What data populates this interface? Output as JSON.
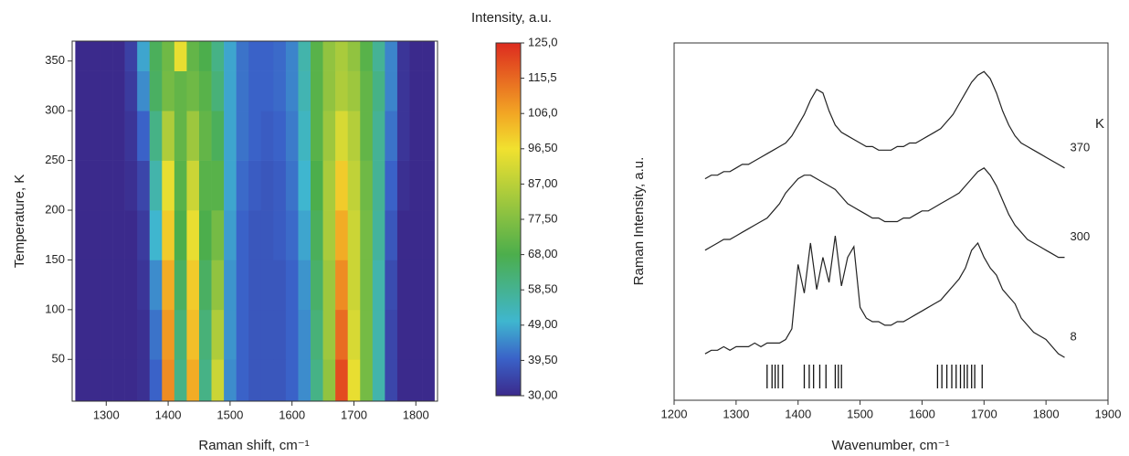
{
  "chart_data": [
    {
      "type": "heatmap",
      "xlabel": "Raman shift, cm⁻¹",
      "ylabel": "Temperature, K",
      "colorbar_label": "Intensity, a.u.",
      "xlim": [
        1245,
        1835
      ],
      "xticks": [
        1300,
        1400,
        1500,
        1600,
        1700,
        1800
      ],
      "ylim": [
        8,
        370
      ],
      "yticks": [
        50,
        100,
        150,
        200,
        250,
        300,
        350
      ],
      "zlim": [
        30,
        125
      ],
      "zticks": [
        {
          "value": 125,
          "label": "125,0"
        },
        {
          "value": 115.5,
          "label": "115,5"
        },
        {
          "value": 106,
          "label": "106,0"
        },
        {
          "value": 96.5,
          "label": "96,50"
        },
        {
          "value": 87,
          "label": "87,00"
        },
        {
          "value": 77.5,
          "label": "77,50"
        },
        {
          "value": 68,
          "label": "68,00"
        },
        {
          "value": 58.5,
          "label": "58,50"
        },
        {
          "value": 49,
          "label": "49,00"
        },
        {
          "value": 39.5,
          "label": "39,50"
        },
        {
          "value": 30,
          "label": "30,00"
        }
      ],
      "colorscale": [
        [
          30,
          "#3b2a8c"
        ],
        [
          40,
          "#3a62c8"
        ],
        [
          50,
          "#3fb6cf"
        ],
        [
          68,
          "#4cae4c"
        ],
        [
          96.5,
          "#f1e12f"
        ],
        [
          106,
          "#f2a624"
        ],
        [
          125,
          "#dd2b1f"
        ]
      ],
      "xbins": [
        1250,
        1270,
        1290,
        1310,
        1330,
        1350,
        1370,
        1390,
        1410,
        1430,
        1450,
        1470,
        1490,
        1510,
        1530,
        1550,
        1570,
        1590,
        1610,
        1630,
        1650,
        1670,
        1690,
        1710,
        1730,
        1750,
        1770,
        1790,
        1810,
        1830
      ],
      "ybins": [
        8,
        50,
        100,
        150,
        200,
        250,
        300,
        340,
        370
      ],
      "z": [
        [
          30,
          30,
          30,
          30,
          30,
          31,
          40,
          110,
          60,
          105,
          60,
          90,
          45,
          40,
          38,
          38,
          38,
          40,
          45,
          60,
          80,
          120,
          95,
          75,
          55,
          35,
          30,
          30,
          30
        ],
        [
          30,
          30,
          30,
          30,
          30,
          31,
          42,
          108,
          62,
          102,
          62,
          85,
          46,
          40,
          38,
          38,
          38,
          40,
          45,
          62,
          82,
          115,
          92,
          75,
          55,
          35,
          30,
          30,
          30
        ],
        [
          30,
          30,
          30,
          30,
          30,
          32,
          45,
          105,
          65,
          100,
          65,
          80,
          46,
          40,
          38,
          38,
          38,
          40,
          46,
          64,
          82,
          110,
          90,
          75,
          55,
          36,
          30,
          30,
          30
        ],
        [
          30,
          30,
          30,
          30,
          30,
          33,
          50,
          100,
          68,
          95,
          68,
          75,
          47,
          40,
          38,
          38,
          39,
          41,
          48,
          66,
          84,
          105,
          90,
          75,
          57,
          38,
          30,
          30,
          30
        ],
        [
          30,
          30,
          30,
          30,
          31,
          35,
          55,
          95,
          70,
          90,
          70,
          70,
          48,
          41,
          39,
          38,
          39,
          42,
          50,
          68,
          84,
          100,
          88,
          74,
          58,
          40,
          31,
          30,
          30
        ],
        [
          30,
          30,
          30,
          30,
          32,
          40,
          60,
          85,
          72,
          82,
          72,
          66,
          48,
          42,
          40,
          39,
          40,
          43,
          52,
          70,
          82,
          92,
          86,
          72,
          58,
          42,
          32,
          30,
          30
        ],
        [
          30,
          30,
          30,
          30,
          33,
          45,
          65,
          75,
          72,
          74,
          70,
          62,
          48,
          42,
          40,
          40,
          41,
          44,
          54,
          70,
          80,
          85,
          82,
          72,
          60,
          44,
          32,
          30,
          30
        ],
        [
          30,
          30,
          30,
          30,
          34,
          48,
          66,
          74,
          95,
          72,
          68,
          60,
          48,
          42,
          40,
          40,
          41,
          44,
          55,
          70,
          80,
          84,
          80,
          70,
          58,
          44,
          32,
          30,
          30
        ]
      ]
    },
    {
      "type": "line",
      "xlabel": "Wavenumber, cm⁻¹",
      "ylabel": "Raman Intensity, a.u.",
      "annotation": "K",
      "xlim": [
        1200,
        1900
      ],
      "xticks": [
        1200,
        1300,
        1400,
        1500,
        1600,
        1700,
        1800,
        1900
      ],
      "ylim": [
        0,
        100
      ],
      "x": [
        1250,
        1260,
        1270,
        1280,
        1290,
        1300,
        1310,
        1320,
        1330,
        1340,
        1350,
        1360,
        1370,
        1380,
        1390,
        1400,
        1410,
        1420,
        1430,
        1440,
        1450,
        1460,
        1470,
        1480,
        1490,
        1500,
        1510,
        1520,
        1530,
        1540,
        1550,
        1560,
        1570,
        1580,
        1590,
        1600,
        1610,
        1620,
        1630,
        1640,
        1650,
        1660,
        1670,
        1680,
        1690,
        1700,
        1710,
        1720,
        1730,
        1740,
        1750,
        1760,
        1770,
        1780,
        1790,
        1800,
        1810,
        1820,
        1830
      ],
      "series": [
        {
          "name": "370",
          "color": "#222222",
          "values": [
            62,
            63,
            63,
            64,
            64,
            65,
            66,
            66,
            67,
            68,
            69,
            70,
            71,
            72,
            74,
            77,
            80,
            84,
            87,
            86,
            81,
            77,
            75,
            74,
            73,
            72,
            71,
            71,
            70,
            70,
            70,
            71,
            71,
            72,
            72,
            73,
            74,
            75,
            76,
            78,
            80,
            83,
            86,
            89,
            91,
            92,
            90,
            86,
            81,
            77,
            74,
            72,
            71,
            70,
            69,
            68,
            67,
            66,
            65
          ]
        },
        {
          "name": "300",
          "color": "#222222",
          "values": [
            42,
            43,
            44,
            45,
            45,
            46,
            47,
            48,
            49,
            50,
            51,
            53,
            55,
            58,
            60,
            62,
            63,
            63,
            62,
            61,
            60,
            59,
            57,
            55,
            54,
            53,
            52,
            51,
            51,
            50,
            50,
            50,
            51,
            51,
            52,
            53,
            53,
            54,
            55,
            56,
            57,
            58,
            60,
            62,
            64,
            65,
            63,
            60,
            56,
            52,
            49,
            47,
            45,
            44,
            43,
            42,
            41,
            40,
            40
          ]
        },
        {
          "name": "8",
          "color": "#222222",
          "values": [
            13,
            14,
            14,
            15,
            14,
            15,
            15,
            15,
            16,
            15,
            16,
            16,
            16,
            17,
            20,
            38,
            30,
            44,
            31,
            40,
            33,
            46,
            32,
            40,
            43,
            26,
            23,
            22,
            22,
            21,
            21,
            22,
            22,
            23,
            24,
            25,
            26,
            27,
            28,
            30,
            32,
            34,
            37,
            42,
            44,
            40,
            37,
            35,
            31,
            29,
            27,
            23,
            21,
            19,
            18,
            17,
            15,
            13,
            12
          ]
        }
      ],
      "markers": [
        1350,
        1358,
        1363,
        1368,
        1375,
        1410,
        1418,
        1425,
        1435,
        1445,
        1460,
        1465,
        1470,
        1625,
        1632,
        1640,
        1648,
        1655,
        1662,
        1668,
        1673,
        1680,
        1685,
        1697
      ]
    }
  ]
}
